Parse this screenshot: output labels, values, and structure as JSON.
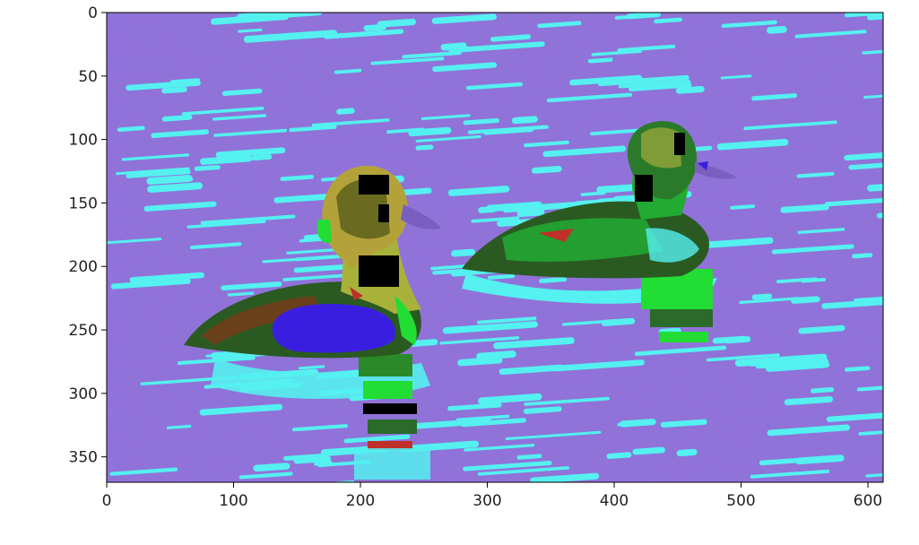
{
  "figure": {
    "x_ticks": [
      "0",
      "100",
      "200",
      "300",
      "400",
      "500",
      "600"
    ],
    "y_ticks": [
      "0",
      "50",
      "100",
      "150",
      "200",
      "250",
      "300",
      "350"
    ],
    "image_extent": {
      "x": [
        0,
        612
      ],
      "y": [
        0,
        370
      ]
    }
  },
  "image": {
    "description_icon": "false-color-photo-two-ducks-on-water",
    "colors": {
      "water": "#8a6fd6",
      "ripple": "#55f0f0",
      "duck_body": "#2a6a2a",
      "duck_bright": "#22dd33",
      "head": "#a8b23a",
      "breast": "#3a1ee0",
      "patch": "#000000",
      "red_accent": "#c0302a"
    }
  }
}
